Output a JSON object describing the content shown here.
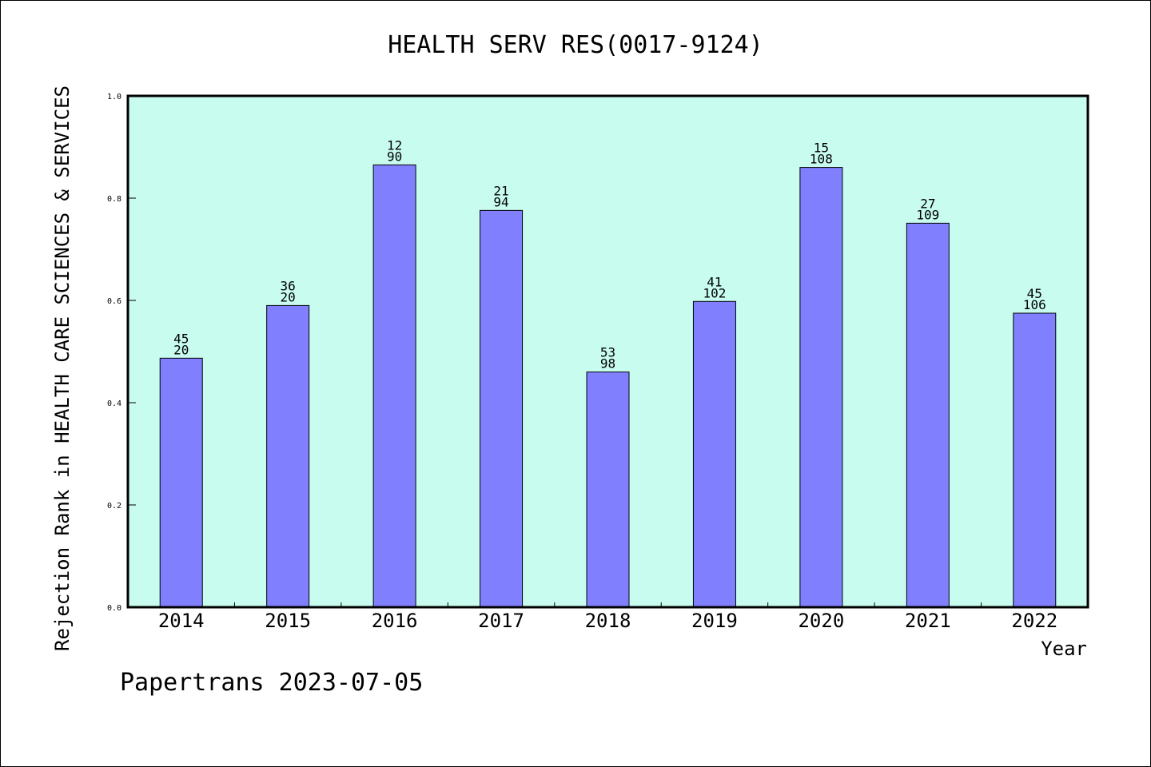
{
  "chart_data": {
    "type": "bar",
    "title": "HEALTH SERV RES(0017-9124)",
    "xlabel": "Year",
    "ylabel": "Rejection Rank in HEALTH CARE SCIENCES & SERVICES",
    "ylim": [
      0,
      1.0
    ],
    "yticks": [
      "0.0",
      "0.2",
      "0.4",
      "0.6",
      "0.8",
      "1.0"
    ],
    "grid": false,
    "background": "#c8fcef",
    "bar_color": "#8080ff",
    "categories": [
      "2014",
      "2015",
      "2016",
      "2017",
      "2018",
      "2019",
      "2020",
      "2021",
      "2022"
    ],
    "values": [
      0.487,
      0.59,
      0.865,
      0.776,
      0.46,
      0.598,
      0.86,
      0.751,
      0.575
    ],
    "labels_top": [
      "45",
      "36",
      "12",
      "21",
      "53",
      "41",
      "15",
      "27",
      "45"
    ],
    "labels_bottom": [
      "20",
      "20",
      "90",
      "94",
      "98",
      "102",
      "108",
      "109",
      "106"
    ]
  },
  "footer": {
    "credit": "Papertrans 2023-07-05"
  }
}
